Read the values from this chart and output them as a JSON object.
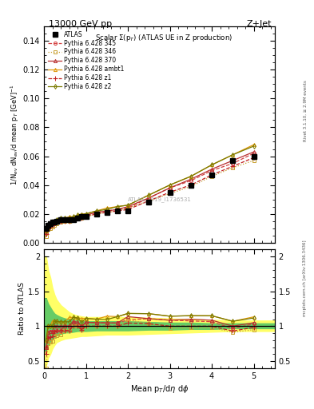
{
  "title_top": "13000 GeV pp",
  "title_right": "Z+Jet",
  "plot_title": "Scalar $\\Sigma$(p$_T$) (ATLAS UE in Z production)",
  "xlabel": "Mean p$_T$/d$\\eta$ d$\\phi$",
  "ylabel_main": "1/N$_{ev}$ dN$_{ev}$/d mean p$_T$ [GeV]$^{-1}$",
  "ylabel_ratio": "Ratio to ATLAS",
  "right_label_top": "Rivet 3.1.10, ≥ 2.9M events",
  "right_label_bottom": "mcplots.cern.ch [arXiv:1306.3436]",
  "watermark": "ATLAS_2019_I1736531",
  "atlas_data_x": [
    0.05,
    0.1,
    0.15,
    0.2,
    0.25,
    0.3,
    0.4,
    0.5,
    0.6,
    0.7,
    0.8,
    0.9,
    1.0,
    1.25,
    1.5,
    1.75,
    2.0,
    2.5,
    3.0,
    3.5,
    4.0,
    4.5,
    5.0
  ],
  "atlas_data_y": [
    0.01,
    0.012,
    0.013,
    0.014,
    0.014,
    0.015,
    0.016,
    0.016,
    0.016,
    0.016,
    0.017,
    0.018,
    0.018,
    0.02,
    0.021,
    0.022,
    0.022,
    0.028,
    0.035,
    0.04,
    0.047,
    0.057,
    0.06
  ],
  "pythia_x": [
    0.05,
    0.1,
    0.15,
    0.2,
    0.25,
    0.3,
    0.4,
    0.5,
    0.6,
    0.7,
    0.8,
    0.9,
    1.0,
    1.25,
    1.5,
    1.75,
    2.0,
    2.5,
    3.0,
    3.5,
    4.0,
    4.5,
    5.0
  ],
  "p345_y": [
    0.007,
    0.01,
    0.012,
    0.013,
    0.013,
    0.014,
    0.015,
    0.016,
    0.016,
    0.017,
    0.017,
    0.018,
    0.019,
    0.021,
    0.022,
    0.023,
    0.024,
    0.031,
    0.038,
    0.043,
    0.05,
    0.055,
    0.062
  ],
  "p346_y": [
    0.004,
    0.009,
    0.01,
    0.011,
    0.012,
    0.013,
    0.014,
    0.015,
    0.015,
    0.016,
    0.017,
    0.017,
    0.018,
    0.02,
    0.021,
    0.022,
    0.024,
    0.029,
    0.034,
    0.039,
    0.046,
    0.052,
    0.057
  ],
  "p370_y": [
    0.007,
    0.011,
    0.012,
    0.013,
    0.014,
    0.015,
    0.016,
    0.016,
    0.016,
    0.017,
    0.018,
    0.018,
    0.019,
    0.021,
    0.022,
    0.023,
    0.025,
    0.031,
    0.038,
    0.044,
    0.051,
    0.057,
    0.063
  ],
  "pambt1_y": [
    0.008,
    0.012,
    0.013,
    0.015,
    0.015,
    0.016,
    0.017,
    0.017,
    0.018,
    0.018,
    0.019,
    0.02,
    0.02,
    0.022,
    0.024,
    0.025,
    0.026,
    0.033,
    0.04,
    0.046,
    0.054,
    0.061,
    0.068
  ],
  "pz1_y": [
    0.006,
    0.01,
    0.011,
    0.012,
    0.013,
    0.014,
    0.015,
    0.015,
    0.015,
    0.016,
    0.017,
    0.017,
    0.018,
    0.02,
    0.021,
    0.022,
    0.023,
    0.029,
    0.035,
    0.04,
    0.047,
    0.053,
    0.059
  ],
  "pz2_y": [
    0.008,
    0.012,
    0.013,
    0.014,
    0.015,
    0.016,
    0.017,
    0.017,
    0.017,
    0.018,
    0.019,
    0.019,
    0.02,
    0.022,
    0.023,
    0.025,
    0.026,
    0.033,
    0.04,
    0.046,
    0.054,
    0.061,
    0.067
  ],
  "yellow_band_x": [
    0.0,
    0.05,
    0.1,
    0.15,
    0.2,
    0.25,
    0.3,
    0.4,
    0.5,
    0.6,
    0.7,
    0.8,
    0.9,
    1.0,
    1.25,
    1.5,
    1.75,
    2.0,
    2.5,
    3.0,
    3.5,
    4.0,
    4.5,
    5.0,
    5.5
  ],
  "yellow_band_lo": [
    0.43,
    0.43,
    0.55,
    0.6,
    0.68,
    0.73,
    0.77,
    0.8,
    0.82,
    0.83,
    0.84,
    0.85,
    0.86,
    0.86,
    0.87,
    0.88,
    0.88,
    0.88,
    0.89,
    0.9,
    0.91,
    0.92,
    0.93,
    0.93,
    0.93
  ],
  "yellow_band_hi": [
    2.0,
    2.0,
    1.8,
    1.7,
    1.55,
    1.45,
    1.38,
    1.3,
    1.25,
    1.2,
    1.17,
    1.15,
    1.14,
    1.13,
    1.13,
    1.13,
    1.13,
    1.13,
    1.12,
    1.11,
    1.1,
    1.09,
    1.08,
    1.08,
    1.08
  ],
  "green_band_lo": [
    0.65,
    0.65,
    0.73,
    0.78,
    0.82,
    0.85,
    0.87,
    0.89,
    0.91,
    0.91,
    0.92,
    0.93,
    0.93,
    0.93,
    0.94,
    0.94,
    0.94,
    0.94,
    0.95,
    0.95,
    0.96,
    0.96,
    0.97,
    0.97,
    0.97
  ],
  "green_band_hi": [
    1.4,
    1.4,
    1.32,
    1.27,
    1.22,
    1.18,
    1.16,
    1.13,
    1.11,
    1.1,
    1.09,
    1.08,
    1.07,
    1.07,
    1.07,
    1.07,
    1.07,
    1.07,
    1.06,
    1.05,
    1.05,
    1.04,
    1.04,
    1.04,
    1.04
  ],
  "color_345": "#d44040",
  "color_346": "#c8a030",
  "color_370": "#b83030",
  "color_ambt1": "#e0980a",
  "color_z1": "#c02020",
  "color_z2": "#7a7a00",
  "ylim_main": [
    0.0,
    0.15
  ],
  "ylim_ratio": [
    0.4,
    2.1
  ],
  "xlim": [
    0.0,
    5.5
  ],
  "yticks_main": [
    0.0,
    0.02,
    0.04,
    0.06,
    0.08,
    0.1,
    0.12,
    0.14
  ],
  "yticks_ratio": [
    0.5,
    1.0,
    1.5,
    2.0
  ]
}
